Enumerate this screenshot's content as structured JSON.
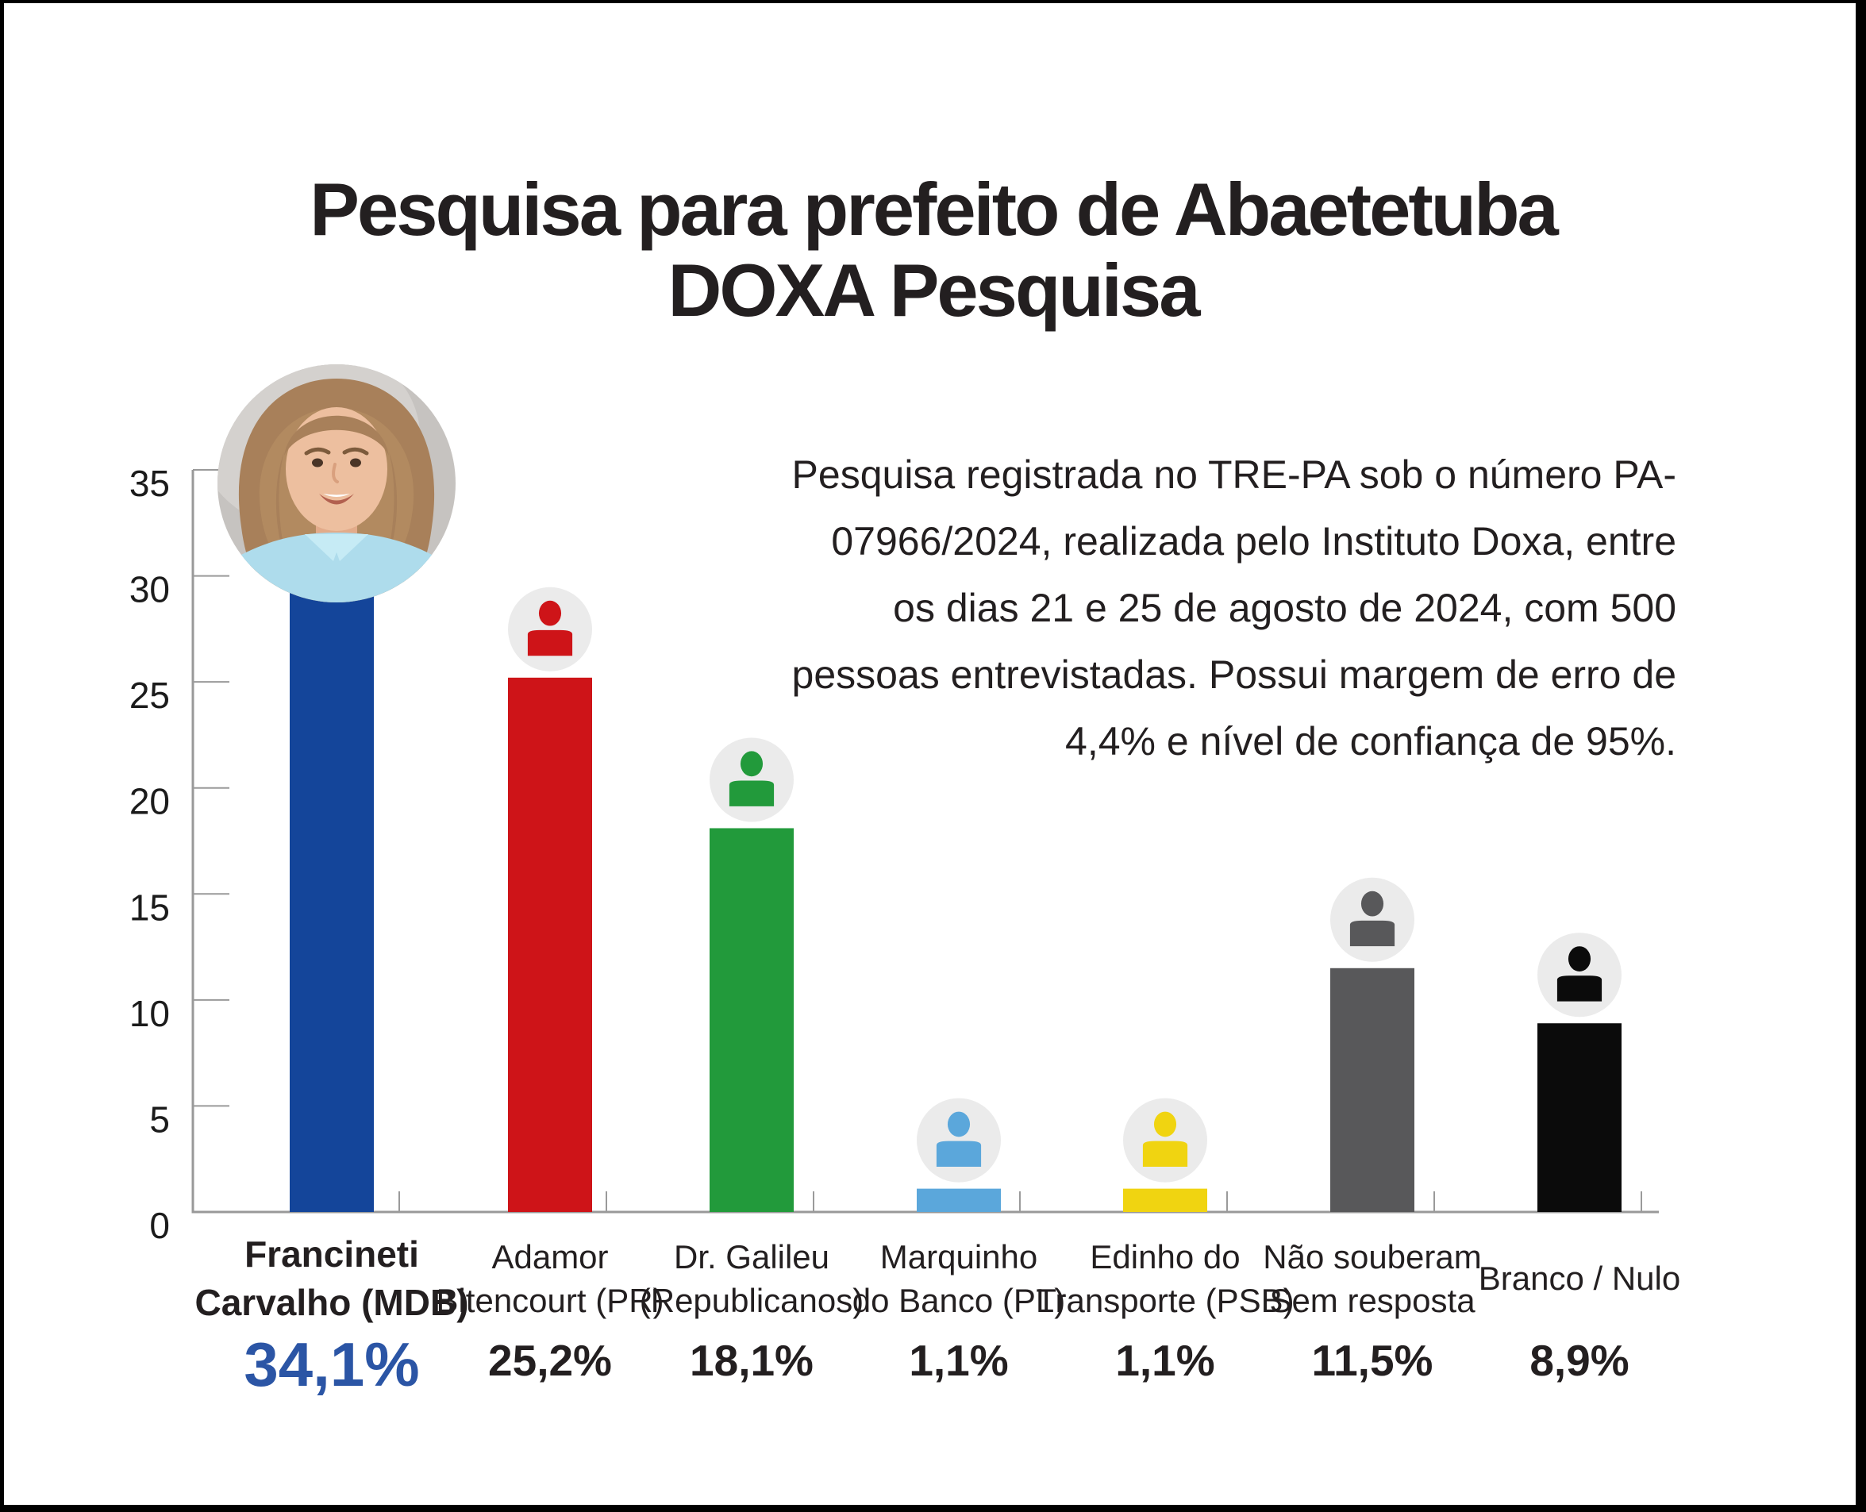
{
  "title": {
    "line1": "Pesquisa para prefeito de Abaetetuba",
    "line2": "DOXA Pesquisa"
  },
  "note": {
    "text": "Pesquisa registrada no TRE-PA sob o número PA-07966/2024, realizada pelo Instituto Doxa, entre os dias 21 e 25 de agosto de 2024, com 500 pessoas entrevistadas. Possui margem de erro de 4,4% e nível de confiança de 95%."
  },
  "chart_data": {
    "type": "bar",
    "title": "Pesquisa para prefeito de Abaetetuba — DOXA Pesquisa",
    "categories": [
      "Francineti Carvalho (MDB)",
      "Adamor Bitencourt (PR)",
      "Dr. Galileu (Republicanos)",
      "Marquinho do Banco (PL)",
      "Edinho do Transporte (PSB)",
      "Não souberam Sem resposta",
      "Branco / Nulo"
    ],
    "category_lines": [
      [
        "Francineti",
        "Carvalho (MDB)"
      ],
      [
        "Adamor",
        "Bitencourt (PR)"
      ],
      [
        "Dr. Galileu",
        "(Republicanos)"
      ],
      [
        "Marquinho",
        "do Banco (PL)"
      ],
      [
        "Edinho do",
        "Transporte (PSB)"
      ],
      [
        "Não souberam",
        "Sem resposta"
      ],
      [
        "Branco / Nulo"
      ]
    ],
    "values": [
      34.1,
      25.2,
      18.1,
      1.1,
      1.1,
      11.5,
      8.9
    ],
    "value_labels": [
      "34,1%",
      "25,2%",
      "18,1%",
      "1,1%",
      "1,1%",
      "11,5%",
      "8,9%"
    ],
    "bar_colors": [
      "#14459a",
      "#ce1418",
      "#229a3b",
      "#5ba7db",
      "#f0d411",
      "#58585a",
      "#0b0b0b"
    ],
    "icons": [
      "candidate-photo",
      "person",
      "person",
      "person",
      "person",
      "person",
      "person"
    ],
    "icon_circle_color": "#ebebeb",
    "highlight_value_color": "#2b55a5",
    "text_color": "#231f20",
    "axis_color": "#999999",
    "xlabel": "",
    "ylabel": "",
    "ylim": [
      0,
      35
    ],
    "yticks": [
      0,
      5,
      10,
      15,
      20,
      25,
      30,
      35
    ],
    "grid": "ticks-only",
    "legend": "none"
  }
}
